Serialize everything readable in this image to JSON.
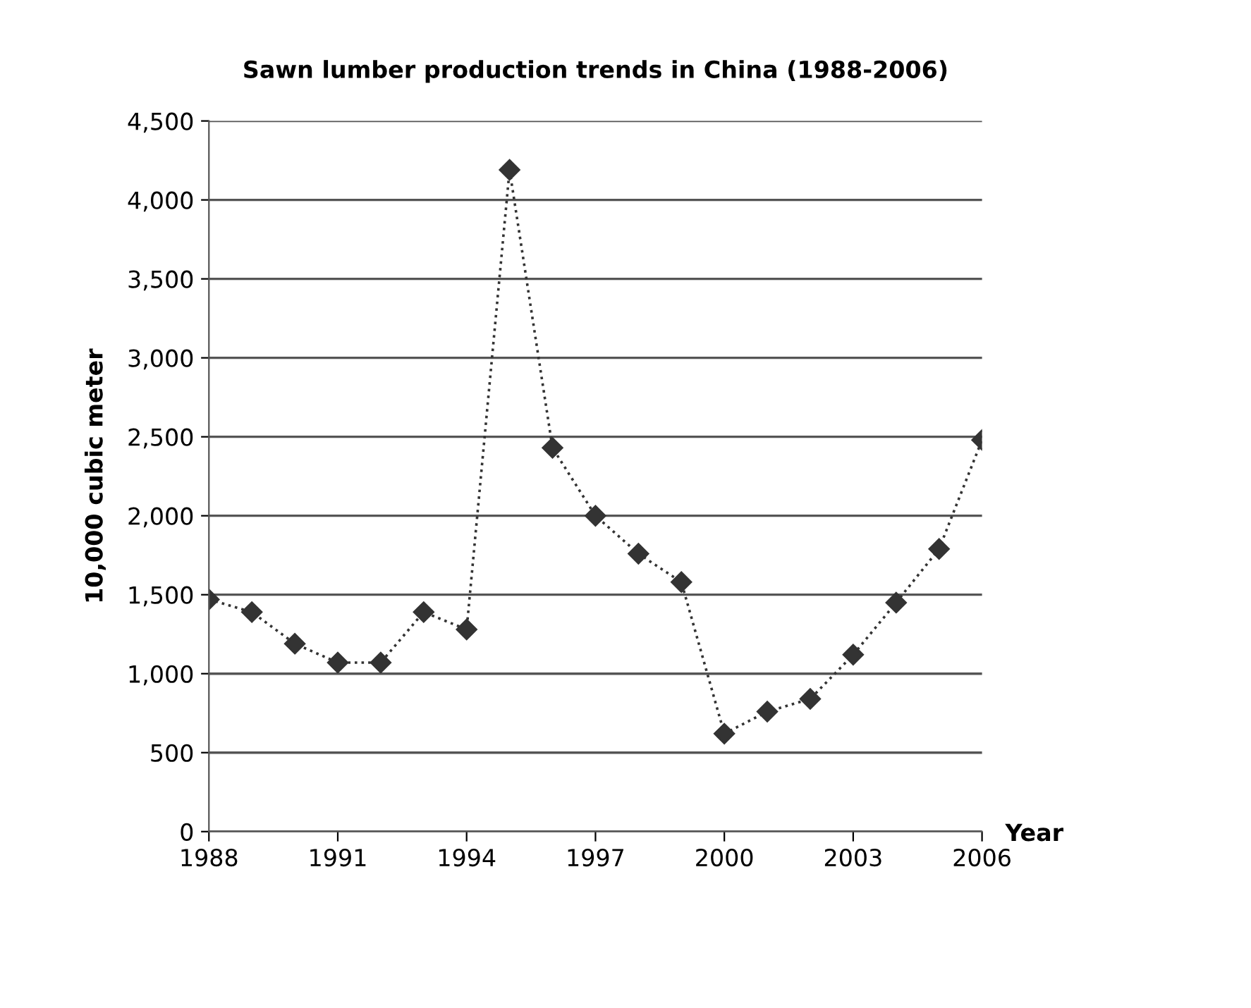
{
  "chart_data": {
    "type": "line",
    "title": "Sawn lumber production trends in China (1988-2006)",
    "xlabel": "Year",
    "ylabel": "10,000 cubic meter",
    "x": [
      1988,
      1989,
      1990,
      1991,
      1992,
      1993,
      1994,
      1995,
      1996,
      1997,
      1998,
      1999,
      2000,
      2001,
      2002,
      2003,
      2004,
      2005,
      2006
    ],
    "series": [
      {
        "color": "#333333",
        "values": [
          1470,
          1390,
          1190,
          1070,
          1070,
          1390,
          1280,
          4190,
          2430,
          2000,
          1760,
          1580,
          620,
          760,
          840,
          1120,
          1450,
          1790,
          2480
        ]
      }
    ],
    "xlim": [
      1988,
      2006
    ],
    "xticks": [
      1988,
      1991,
      1994,
      1997,
      2000,
      2003,
      2006
    ],
    "ylim": [
      0,
      4500
    ],
    "yticks": [
      {
        "value": 0,
        "label": "0"
      },
      {
        "value": 500,
        "label": "500"
      },
      {
        "value": 1000,
        "label": "1,000"
      },
      {
        "value": 1500,
        "label": "1,500"
      },
      {
        "value": 2000,
        "label": "2,000"
      },
      {
        "value": 2500,
        "label": "2,500"
      },
      {
        "value": 3000,
        "label": "3,000"
      },
      {
        "value": 3500,
        "label": "3,500"
      },
      {
        "value": 4000,
        "label": "4,000"
      },
      {
        "value": 4500,
        "label": "4,500"
      }
    ],
    "grid": "y",
    "marker": "diamond",
    "line_style": "dotted",
    "legend": false
  }
}
